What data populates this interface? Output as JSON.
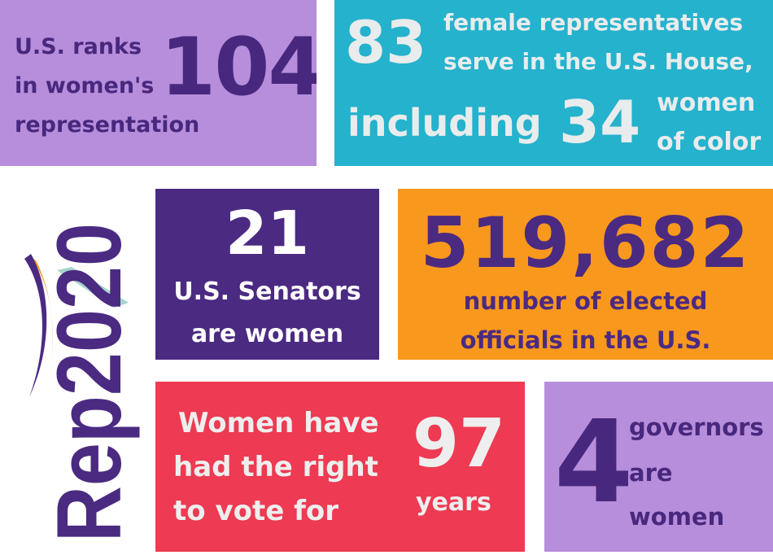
{
  "rank": {
    "lines": [
      "U.S. ranks",
      "in women's",
      "representation"
    ],
    "number": "104"
  },
  "house": {
    "number_1": "83",
    "text_1": [
      "female representatives",
      "serve in the U.S. House,"
    ],
    "text_2": "including",
    "number_2": "34",
    "text_3": [
      "women",
      "of color"
    ]
  },
  "senate": {
    "number": "21",
    "lines": [
      "U.S. Senators",
      "are women"
    ]
  },
  "officials": {
    "number": "519,682",
    "lines": [
      "number of elected",
      "officials in the U.S."
    ]
  },
  "vote": {
    "lines": [
      "Women have",
      "had the right",
      "to vote for"
    ],
    "number": "97",
    "unit": "years"
  },
  "governors": {
    "number": "4",
    "lines": [
      "governors",
      "are",
      "women"
    ]
  },
  "logo": {
    "text": "Rep2020",
    "colors": {
      "purple": "#4b2a82",
      "orange": "#f8981d",
      "teal": "#a7d3cf"
    }
  }
}
